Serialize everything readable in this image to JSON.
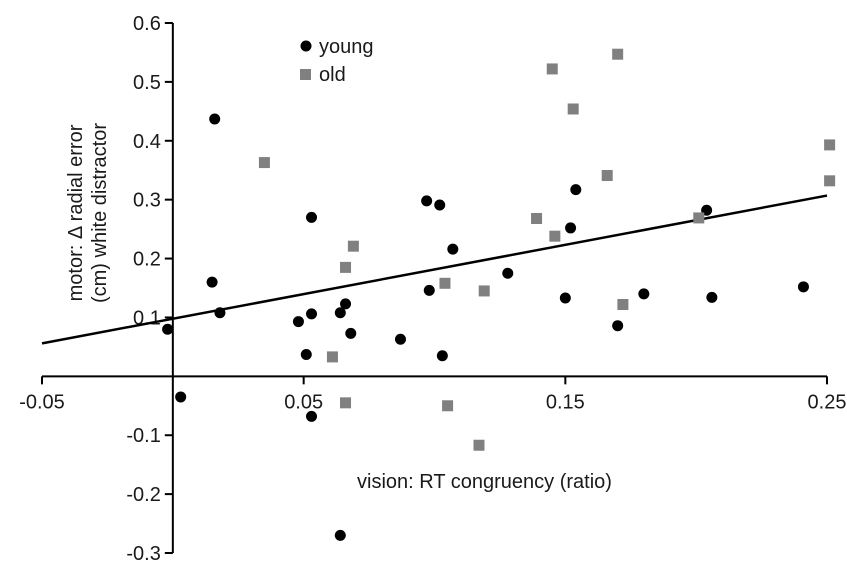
{
  "chart_data": {
    "type": "scatter",
    "title": "",
    "xlabel": "vision: RT congruency (ratio)",
    "ylabel": "motor: Δ radial error (cm) white distractor",
    "ylabel_lines": [
      "motor: Δ radial error",
      "(cm) white distractor"
    ],
    "xlim": [
      -0.05,
      0.25
    ],
    "ylim": [
      -0.3,
      0.6
    ],
    "x_ticks": [
      -0.05,
      0.05,
      0.15,
      0.25
    ],
    "x_tick_labels": [
      "-0.05",
      "0.05",
      "0.15",
      "0.25"
    ],
    "y_ticks": [
      -0.3,
      -0.2,
      -0.1,
      0.1,
      0.2,
      0.3,
      0.4,
      0.5,
      0.6
    ],
    "y_tick_labels": [
      "-0.3",
      "-0.2",
      "-0.1",
      "0.1",
      "0.2",
      "0.3",
      "0.4",
      "0.5",
      "0.6"
    ],
    "grid": false,
    "legend_position": "top-center",
    "series": [
      {
        "name": "young",
        "marker": "circle",
        "color": "#000000",
        "points": [
          [
            -0.002,
            0.08
          ],
          [
            0.003,
            -0.035
          ],
          [
            0.015,
            0.16
          ],
          [
            0.016,
            0.437
          ],
          [
            0.018,
            0.108
          ],
          [
            0.048,
            0.093
          ],
          [
            0.051,
            0.037
          ],
          [
            0.053,
            0.106
          ],
          [
            0.053,
            0.27
          ],
          [
            0.053,
            -0.068
          ],
          [
            0.064,
            0.108
          ],
          [
            0.066,
            0.123
          ],
          [
            0.068,
            0.073
          ],
          [
            0.064,
            -0.27
          ],
          [
            0.087,
            0.063
          ],
          [
            0.097,
            0.298
          ],
          [
            0.098,
            0.146
          ],
          [
            0.102,
            0.291
          ],
          [
            0.103,
            0.035
          ],
          [
            0.107,
            0.216
          ],
          [
            0.128,
            0.175
          ],
          [
            0.15,
            0.133
          ],
          [
            0.152,
            0.252
          ],
          [
            0.154,
            0.317
          ],
          [
            0.17,
            0.086
          ],
          [
            0.18,
            0.14
          ],
          [
            0.204,
            0.282
          ],
          [
            0.206,
            0.134
          ],
          [
            0.241,
            0.152
          ]
        ]
      },
      {
        "name": "old",
        "marker": "square",
        "color": "#808080",
        "points": [
          [
            0.035,
            0.363
          ],
          [
            0.061,
            0.033
          ],
          [
            0.066,
            0.185
          ],
          [
            0.066,
            -0.045
          ],
          [
            0.069,
            0.221
          ],
          [
            0.104,
            0.158
          ],
          [
            0.105,
            -0.05
          ],
          [
            0.117,
            -0.117
          ],
          [
            0.119,
            0.145
          ],
          [
            0.139,
            0.268
          ],
          [
            0.145,
            0.522
          ],
          [
            0.146,
            0.238
          ],
          [
            0.153,
            0.454
          ],
          [
            0.166,
            0.341
          ],
          [
            0.17,
            0.547
          ],
          [
            0.172,
            0.122
          ],
          [
            0.201,
            0.269
          ],
          [
            0.251,
            0.393
          ],
          [
            0.251,
            0.332
          ]
        ]
      }
    ],
    "trendline": {
      "type": "linear",
      "x": [
        -0.05,
        0.25
      ],
      "y": [
        0.056,
        0.307
      ],
      "color": "#000000"
    }
  }
}
